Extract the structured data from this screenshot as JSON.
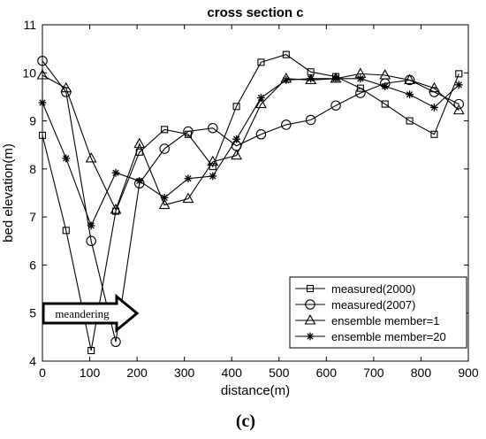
{
  "chart_data": {
    "type": "line",
    "title": "cross section c",
    "xlabel": "distance(m)",
    "ylabel": "bed elevation(m)",
    "xlim": [
      0,
      900
    ],
    "ylim": [
      4,
      11
    ],
    "xticks": [
      0,
      100,
      200,
      300,
      400,
      500,
      600,
      700,
      800,
      900
    ],
    "yticks": [
      4,
      5,
      6,
      7,
      8,
      9,
      10,
      11
    ],
    "grid": false,
    "legend_position": "bottom-right",
    "series": [
      {
        "name": "measured(2000)",
        "marker": "square",
        "x": [
          0,
          50,
          103,
          155,
          205,
          258,
          308,
          360,
          410,
          462,
          515,
          567,
          620,
          672,
          724,
          776,
          828,
          880
        ],
        "y": [
          8.7,
          6.72,
          4.22,
          7.12,
          8.35,
          8.82,
          8.72,
          8.05,
          9.3,
          10.22,
          10.38,
          10.02,
          9.92,
          9.68,
          9.35,
          9.0,
          8.72,
          9.98
        ]
      },
      {
        "name": "measured(2007)",
        "marker": "circle",
        "x": [
          0,
          50,
          103,
          155,
          205,
          258,
          308,
          360,
          410,
          462,
          515,
          567,
          620,
          672,
          724,
          776,
          828,
          880
        ],
        "y": [
          10.25,
          9.6,
          6.5,
          4.4,
          7.7,
          8.42,
          8.78,
          8.85,
          8.48,
          8.72,
          8.92,
          9.02,
          9.32,
          9.58,
          9.78,
          9.85,
          9.6,
          9.35
        ]
      },
      {
        "name": "ensemble member=1",
        "marker": "triangle",
        "x": [
          0,
          50,
          103,
          155,
          205,
          258,
          308,
          360,
          410,
          462,
          515,
          567,
          620,
          672,
          724,
          776,
          828,
          880
        ],
        "y": [
          9.95,
          9.68,
          8.22,
          7.15,
          8.52,
          7.25,
          7.38,
          8.15,
          8.28,
          9.35,
          9.88,
          9.85,
          9.88,
          9.98,
          9.95,
          9.85,
          9.68,
          9.22
        ]
      },
      {
        "name": "ensemble member=20",
        "marker": "asterisk",
        "x": [
          0,
          50,
          103,
          155,
          205,
          258,
          308,
          360,
          410,
          462,
          515,
          567,
          620,
          672,
          724,
          776,
          828,
          880
        ],
        "y": [
          9.38,
          8.22,
          6.82,
          7.92,
          7.75,
          7.4,
          7.8,
          7.85,
          8.62,
          9.48,
          9.85,
          9.88,
          9.88,
          9.88,
          9.72,
          9.55,
          9.28,
          9.75
        ]
      }
    ],
    "annotations": [
      {
        "text": "meandering",
        "shape": "right-arrow",
        "x_start": 0,
        "x_end": 210,
        "y": 4.85
      }
    ]
  },
  "caption": "(c)"
}
